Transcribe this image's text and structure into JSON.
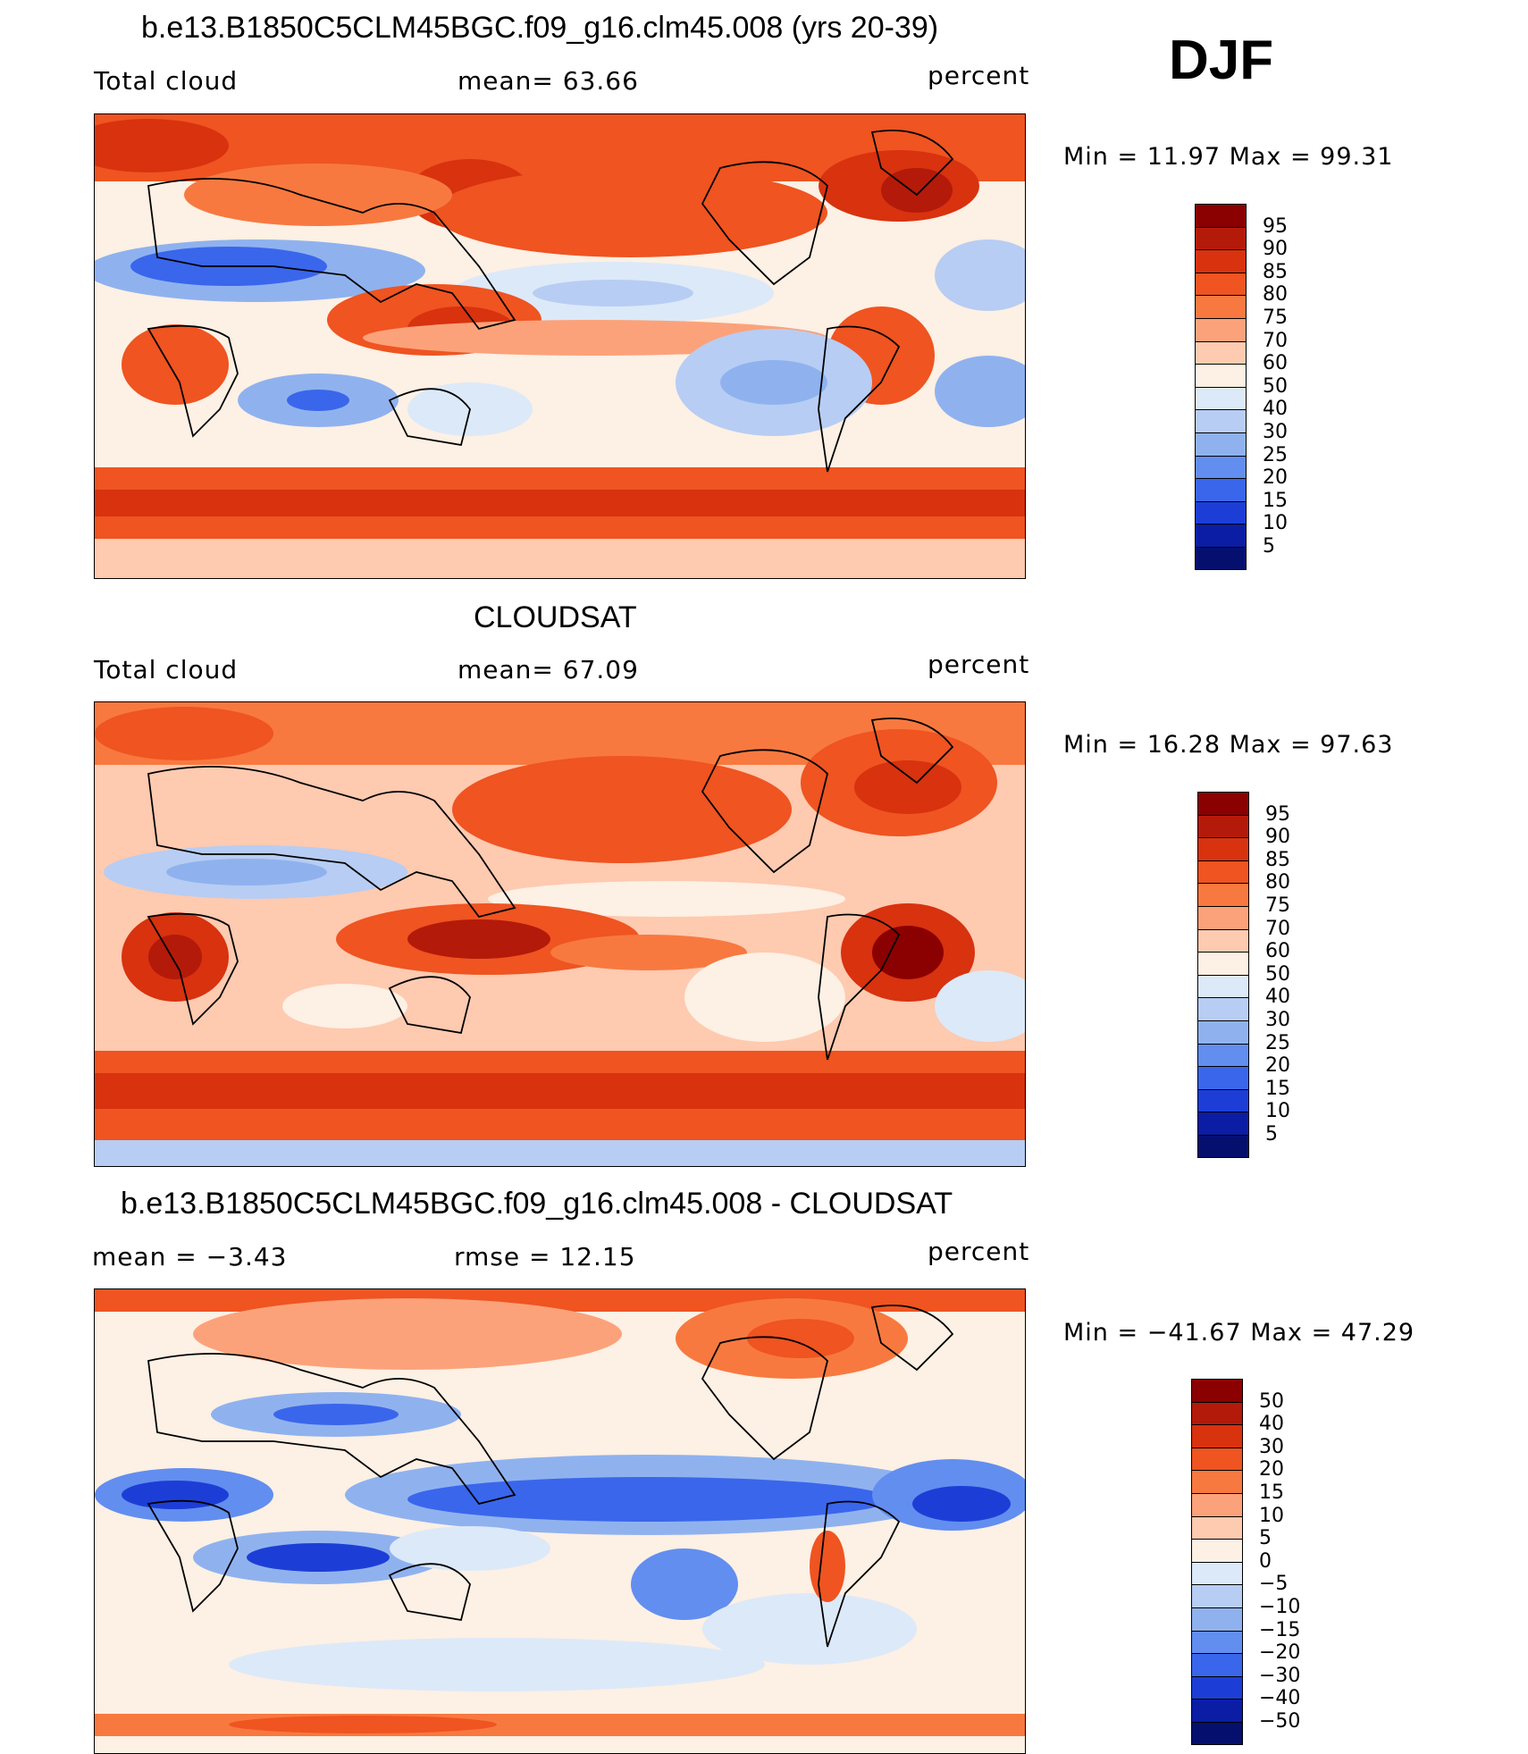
{
  "season": "DJF",
  "panels": [
    {
      "title": "b.e13.B1850C5CLM45BGC.f09_g16.clm45.008 (yrs 20-39)",
      "left_label": "Total cloud",
      "center_label": "mean=   63.66",
      "right_label": "percent",
      "minmax": "Min =   11.97  Max =   99.31",
      "colorbar_levels": [
        "95",
        "90",
        "85",
        "80",
        "75",
        "70",
        "60",
        "50",
        "40",
        "30",
        "25",
        "20",
        "15",
        "10",
        "5"
      ],
      "colorbar_colors": [
        "#8b0000",
        "#b41a0a",
        "#d8320f",
        "#ef5421",
        "#f8793f",
        "#fca27a",
        "#fecab0",
        "#fdf0e4",
        "#dce9f8",
        "#b7cdf3",
        "#8fb2ef",
        "#628ef0",
        "#3a66ec",
        "#1d3ed6",
        "#0a1da4",
        "#05106e"
      ]
    },
    {
      "title": "CLOUDSAT",
      "left_label": "Total cloud",
      "center_label": "mean=   67.09",
      "right_label": "percent",
      "minmax": "Min =   16.28  Max =   97.63",
      "colorbar_levels": [
        "95",
        "90",
        "85",
        "80",
        "75",
        "70",
        "60",
        "50",
        "40",
        "30",
        "25",
        "20",
        "15",
        "10",
        "5"
      ],
      "colorbar_colors": [
        "#8b0000",
        "#b41a0a",
        "#d8320f",
        "#ef5421",
        "#f8793f",
        "#fca27a",
        "#fecab0",
        "#fdf0e4",
        "#dce9f8",
        "#b7cdf3",
        "#8fb2ef",
        "#628ef0",
        "#3a66ec",
        "#1d3ed6",
        "#0a1da4",
        "#05106e"
      ]
    },
    {
      "title": "b.e13.B1850C5CLM45BGC.f09_g16.clm45.008 - CLOUDSAT",
      "left_label": "mean =   −3.43",
      "center_label": "rmse =   12.15",
      "right_label": "percent",
      "minmax": "Min = −41.67  Max =   47.29",
      "colorbar_levels": [
        "50",
        "40",
        "30",
        "20",
        "15",
        "10",
        "5",
        "0",
        "−5",
        "−10",
        "−15",
        "−20",
        "−30",
        "−40",
        "−50"
      ],
      "colorbar_colors": [
        "#8b0000",
        "#b41a0a",
        "#d8320f",
        "#ef5421",
        "#f8793f",
        "#fca27a",
        "#fecab0",
        "#fdf0e4",
        "#dce9f8",
        "#b7cdf3",
        "#8fb2ef",
        "#628ef0",
        "#3a66ec",
        "#1d3ed6",
        "#0a1da4",
        "#05106e"
      ]
    }
  ]
}
